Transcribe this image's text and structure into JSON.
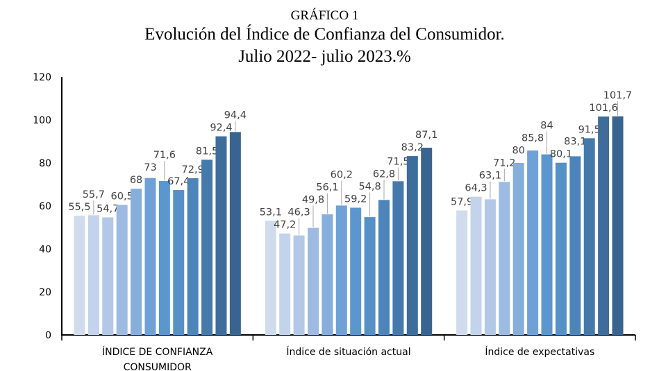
{
  "chart_data": {
    "type": "bar",
    "title": "GRÁFICO 1",
    "subtitle": [
      "Evolución  del Índice de Confianza del Consumidor.",
      "Julio 2022- julio 2023.%"
    ],
    "categories": [
      "ÍNDICE DE CONFIANZA CONSUMIDOR",
      "Índice de situación actual",
      "Índice de expectativas"
    ],
    "category_lines": [
      [
        "ÍNDICE DE CONFIANZA",
        "CONSUMIDOR"
      ],
      [
        "Índice de situación actual"
      ],
      [
        "Índice de expectativas"
      ]
    ],
    "groups": [
      {
        "values": [
          55.5,
          55.7,
          54.7,
          60.5,
          68,
          73,
          71.6,
          67.4,
          72.9,
          81.5,
          92.4,
          94.4
        ],
        "labels": [
          "55,5",
          "55,7",
          "54,7",
          "60,5",
          "68",
          "73",
          "71,6",
          "67,4",
          "72,9",
          "81,5",
          "92,4",
          "94,4"
        ]
      },
      {
        "values": [
          53.1,
          47.2,
          46.3,
          49.8,
          56.1,
          60.2,
          59.2,
          54.8,
          62.8,
          71.5,
          83.2,
          87.1
        ],
        "labels": [
          "53,1",
          "47,2",
          "46,3",
          "49,8",
          "56,1",
          "60,2",
          "59,2",
          "54,8",
          "62,8",
          "71,5",
          "83,2",
          "87,1"
        ]
      },
      {
        "values": [
          57.9,
          64.3,
          63.1,
          71.2,
          80,
          85.8,
          84,
          80.1,
          83.1,
          91.5,
          101.6,
          101.7
        ],
        "labels": [
          "57,9",
          "64,3",
          "63,1",
          "71,2",
          "80",
          "85,8",
          "84",
          "80,1",
          "83,1",
          "91,5",
          "101,6",
          "101,7"
        ]
      }
    ],
    "bar_colors": [
      "#d0dcee",
      "#c2d3eb",
      "#b2c8e6",
      "#9dbbe2",
      "#86aedb",
      "#6fa1d6",
      "#5b96cf",
      "#5590c7",
      "#4d85bb",
      "#4679ab",
      "#3f6d9b",
      "#3a6490"
    ],
    "xlabel": "",
    "ylabel": "",
    "ylim": [
      0,
      120
    ],
    "yticks": [
      0,
      20,
      40,
      60,
      80,
      100,
      120
    ],
    "grid": false,
    "legend": "none"
  }
}
